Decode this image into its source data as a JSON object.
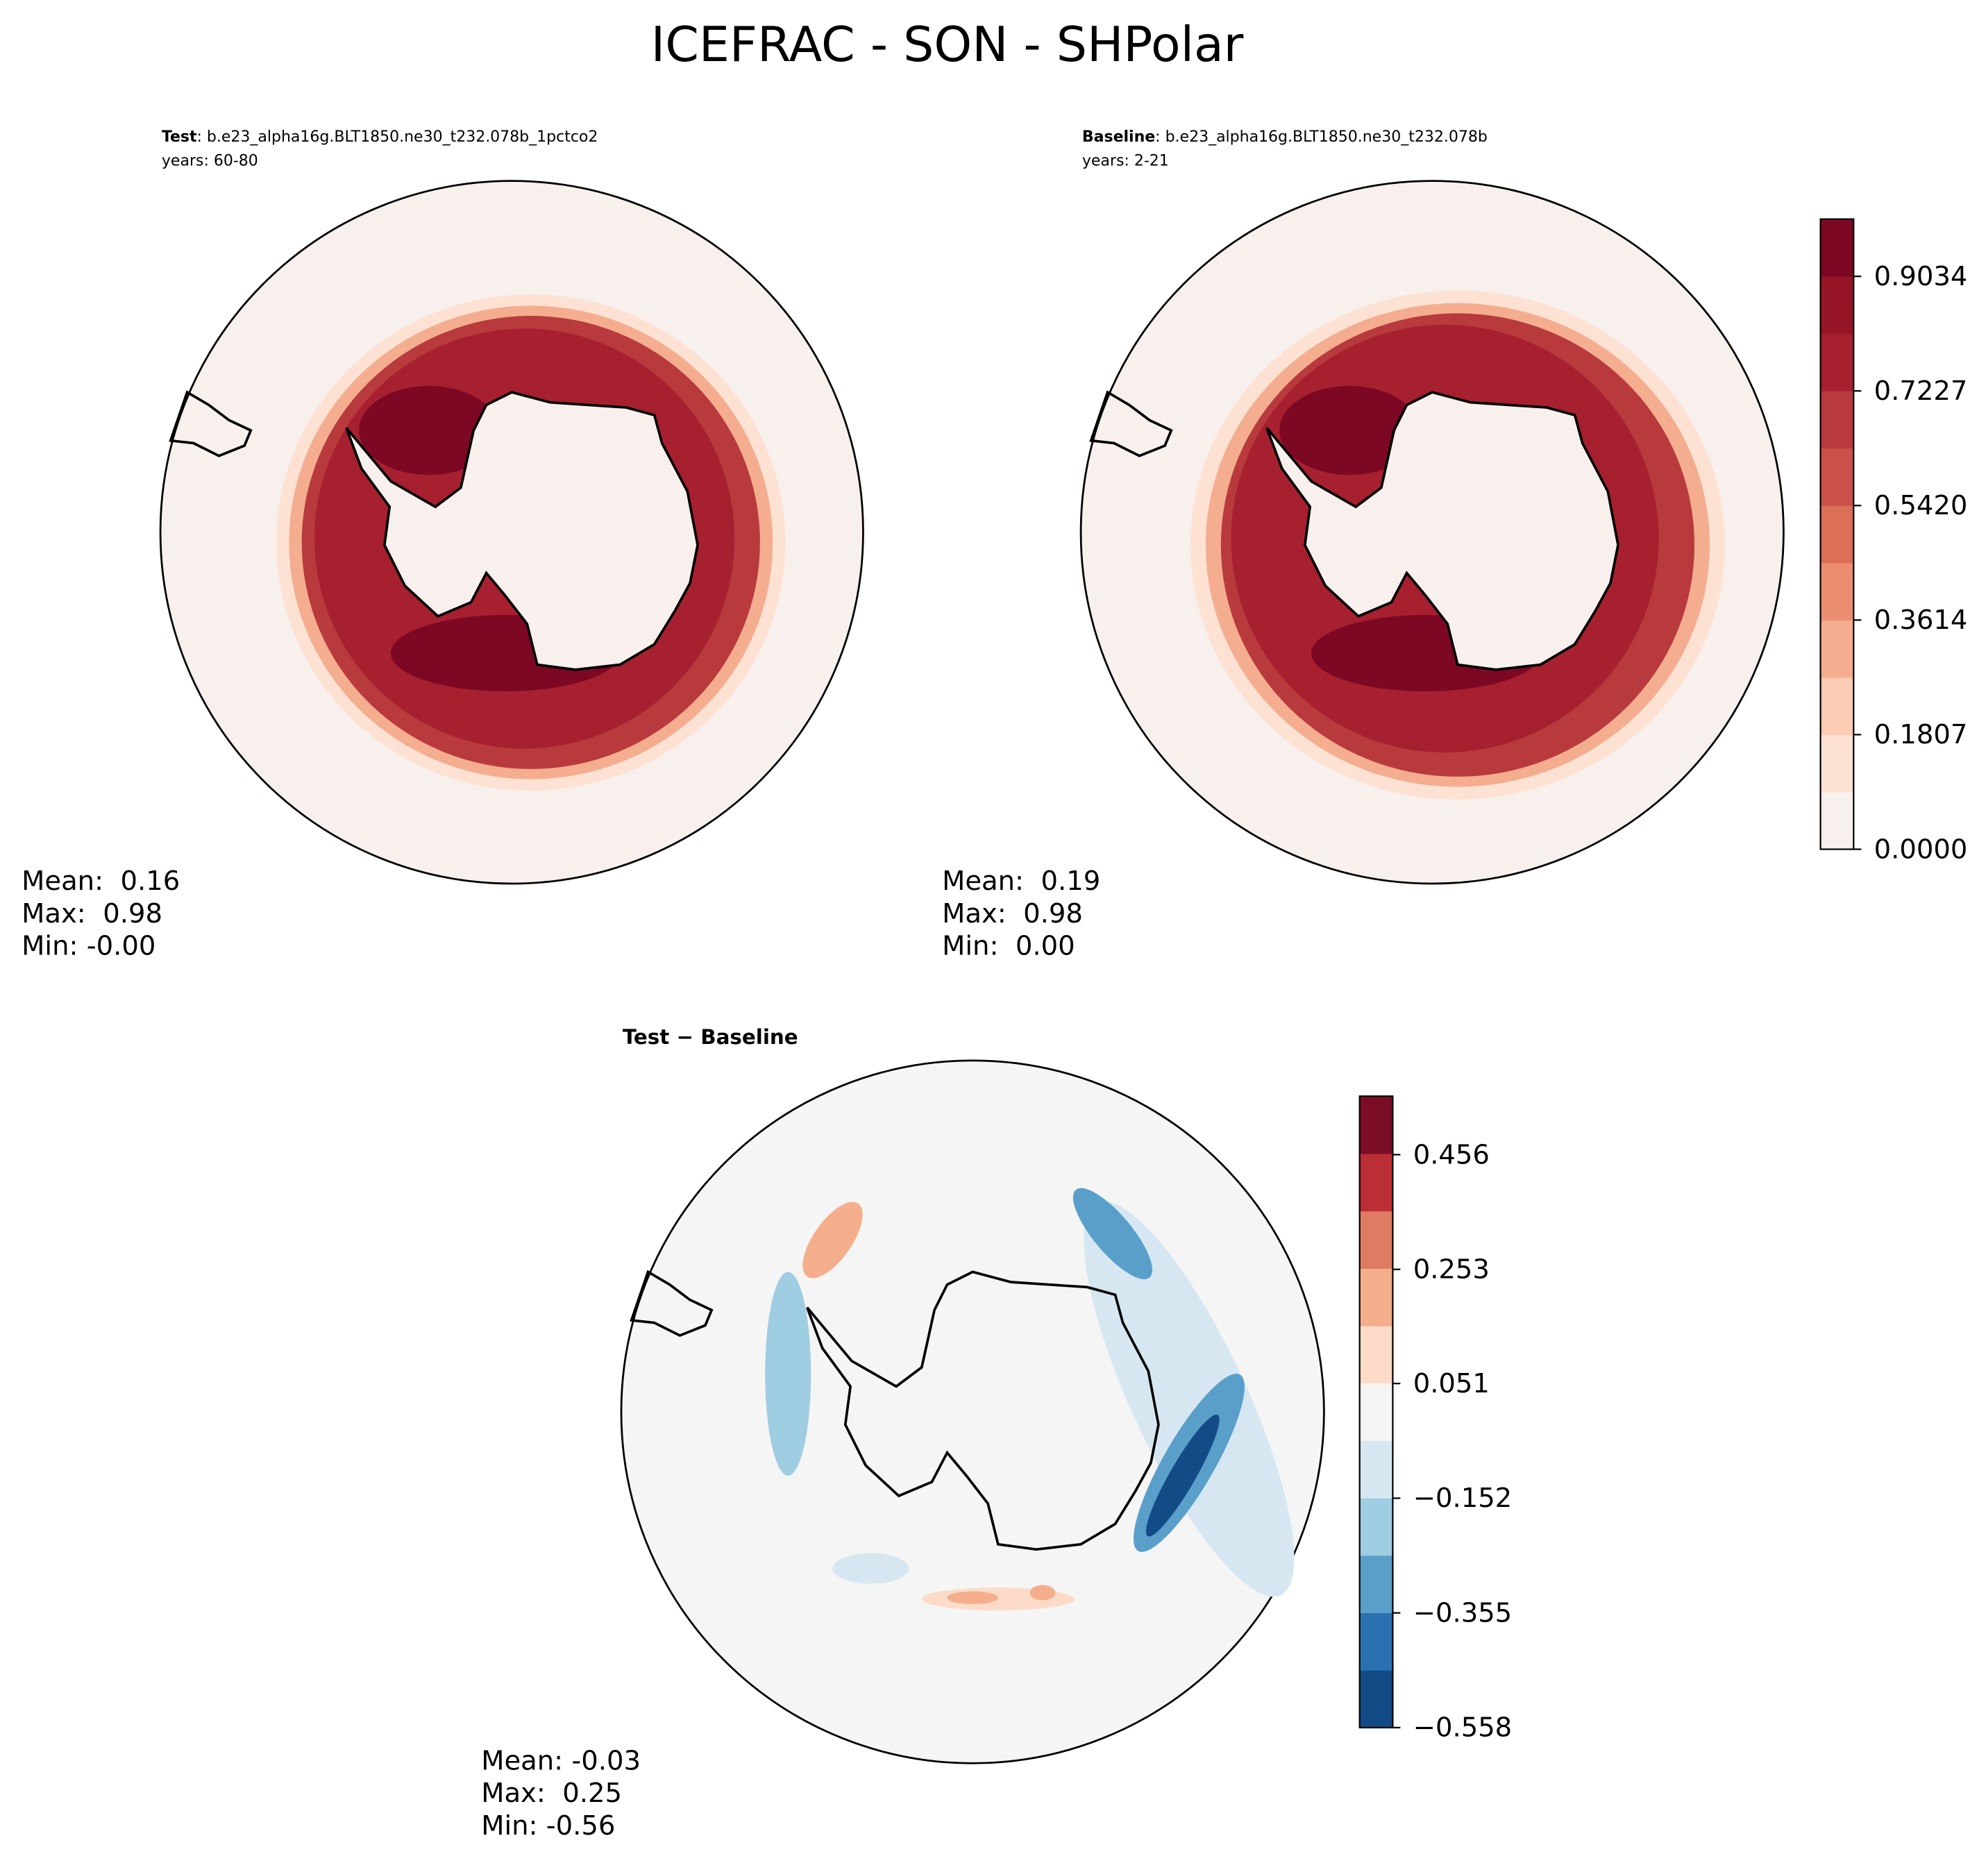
{
  "title": "ICEFRAC - SON - SHPolar",
  "panels": [
    {
      "label": "Test",
      "case": ": b.e23_alpha16g.BLT1850.ne30_t232.078b_1pctco2",
      "years": "years: 60-80",
      "stats": [
        "Mean:  0.16",
        "Max:  0.98",
        "Min: -0.00"
      ]
    },
    {
      "label": "Baseline",
      "case": ": b.e23_alpha16g.BLT1850.ne30_t232.078b",
      "years": "years: 2-21",
      "stats": [
        "Mean:  0.19",
        "Max:  0.98",
        "Min:  0.00"
      ]
    },
    {
      "label": "Test − Baseline",
      "stats": [
        "Mean: -0.03",
        "Max:  0.25",
        "Min: -0.56"
      ]
    }
  ],
  "colorbars": [
    {
      "lim": [
        0,
        0.9937
      ],
      "ticks": [
        {
          "value": 0,
          "label": "0.0000"
        },
        0.1807,
        0.3614,
        {
          "value": 0.542,
          "label": "0.5420"
        },
        0.7227,
        0.9034
      ],
      "colors": [
        "#f7f0ec",
        "#fde2d4",
        "#fbcbb3",
        "#f5ad8f",
        "#eb8d70",
        "#dc6f58",
        "#c9514a",
        "#b83a3d",
        "#a7202f",
        "#951527",
        "#7d0824"
      ]
    },
    {
      "lim": [
        -0.558,
        0.5595
      ],
      "ticks": [
        {
          "value": -0.558,
          "label": "−0.558"
        },
        {
          "value": -0.355,
          "label": "−0.355"
        },
        {
          "value": -0.152,
          "label": "−0.152"
        },
        0.051,
        0.253,
        0.456
      ],
      "colors": [
        "#134b87",
        "#2a71b1",
        "#5a9fca",
        "#9fcde2",
        "#d6e7f1",
        "#f5f5f5",
        "#fcdbc8",
        "#f5ae8b",
        "#e07b63",
        "#bb2e35",
        "#7b0e25"
      ]
    }
  ]
}
